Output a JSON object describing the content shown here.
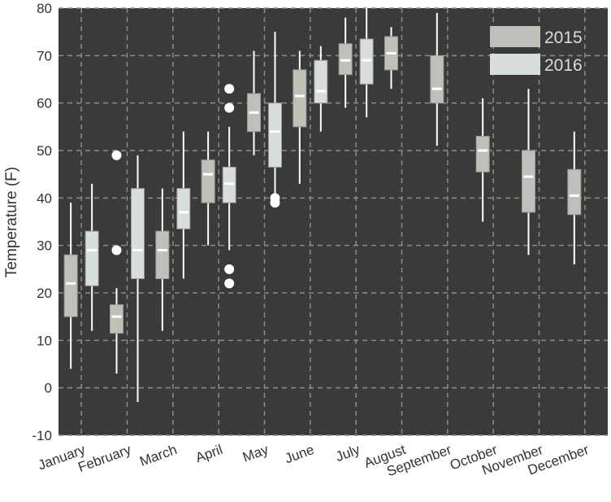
{
  "chart_data": {
    "type": "box",
    "ylabel": "Temperature (F)",
    "ylim": [
      -10,
      80
    ],
    "yticks": [
      -10,
      0,
      10,
      20,
      30,
      40,
      50,
      60,
      70,
      80
    ],
    "categories": [
      "January",
      "February",
      "March",
      "April",
      "May",
      "June",
      "July",
      "August",
      "September",
      "October",
      "November",
      "December"
    ],
    "grid": true,
    "legend_position": "top-right",
    "colors": {
      "plot_background": "#3a3a3a",
      "grid": "#8c8c8c",
      "series_2015": "#c0c0bb",
      "series_2016": "#d8dddd",
      "whisker": "#ffffff",
      "median": "#ffffff",
      "outlier": "#ffffff",
      "axis_text": "#333333"
    },
    "series": [
      {
        "name": "2015",
        "boxes": [
          {
            "month": "January",
            "min": 4,
            "q1": 15,
            "median": 22,
            "q3": 28,
            "max": 39,
            "outliers": []
          },
          {
            "month": "February",
            "min": 3,
            "q1": 11.5,
            "median": 15,
            "q3": 17.5,
            "max": 21,
            "outliers": [
              29,
              49
            ]
          },
          {
            "month": "March",
            "min": 12,
            "q1": 23,
            "median": 29,
            "q3": 33,
            "max": 42,
            "outliers": []
          },
          {
            "month": "April",
            "min": 30,
            "q1": 39,
            "median": 45,
            "q3": 48,
            "max": 54,
            "outliers": []
          },
          {
            "month": "May",
            "min": 49,
            "q1": 54,
            "median": 58,
            "q3": 62,
            "max": 71,
            "outliers": []
          },
          {
            "month": "June",
            "min": 43,
            "q1": 55,
            "median": 61.5,
            "q3": 67,
            "max": 71,
            "outliers": []
          },
          {
            "month": "July",
            "min": 59,
            "q1": 66,
            "median": 69,
            "q3": 72.5,
            "max": 78,
            "outliers": []
          },
          {
            "month": "August",
            "min": 63,
            "q1": 67,
            "median": 70.5,
            "q3": 74,
            "max": 76,
            "outliers": []
          },
          {
            "month": "September",
            "min": 51,
            "q1": 60,
            "median": 63,
            "q3": 70,
            "max": 79,
            "outliers": []
          },
          {
            "month": "October",
            "min": 35,
            "q1": 45.5,
            "median": 50,
            "q3": 53,
            "max": 61,
            "outliers": []
          },
          {
            "month": "November",
            "min": 28,
            "q1": 37,
            "median": 44.5,
            "q3": 50,
            "max": 63,
            "outliers": []
          },
          {
            "month": "December",
            "min": 26,
            "q1": 36.5,
            "median": 40.5,
            "q3": 46,
            "max": 54,
            "outliers": []
          }
        ]
      },
      {
        "name": "2016",
        "boxes": [
          {
            "month": "January",
            "min": 12,
            "q1": 21.5,
            "median": 29,
            "q3": 33,
            "max": 43,
            "outliers": []
          },
          {
            "month": "February",
            "min": -3,
            "q1": 23,
            "median": 29,
            "q3": 42,
            "max": 49,
            "outliers": []
          },
          {
            "month": "March",
            "min": 23,
            "q1": 33.5,
            "median": 37,
            "q3": 42,
            "max": 54,
            "outliers": []
          },
          {
            "month": "April",
            "min": 29,
            "q1": 39,
            "median": 43,
            "q3": 46.5,
            "max": 55,
            "outliers": [
              22,
              25,
              59,
              63
            ]
          },
          {
            "month": "May",
            "min": 41,
            "q1": 46.5,
            "median": 54,
            "q3": 60,
            "max": 75,
            "outliers": [
              39,
              40
            ]
          },
          {
            "month": "June",
            "min": 54,
            "q1": 60,
            "median": 62.5,
            "q3": 69,
            "max": 72,
            "outliers": []
          },
          {
            "month": "July",
            "min": 57,
            "q1": 64,
            "median": 69,
            "q3": 73.5,
            "max": 80,
            "outliers": []
          }
        ]
      }
    ]
  }
}
